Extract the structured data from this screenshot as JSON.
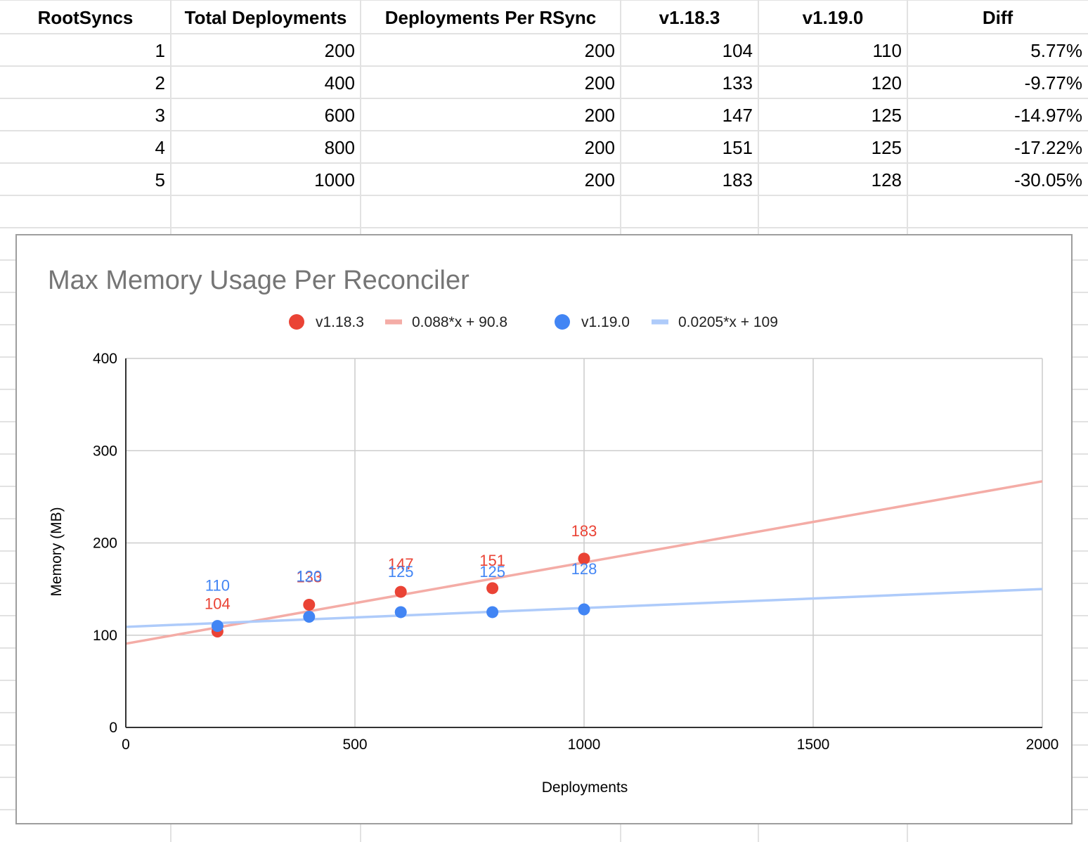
{
  "table": {
    "headers": [
      "RootSyncs",
      "Total Deployments",
      "Deployments Per RSync",
      "v1.18.3",
      "v1.19.0",
      "Diff"
    ],
    "rows": [
      [
        "1",
        "200",
        "200",
        "104",
        "110",
        "5.77%"
      ],
      [
        "2",
        "400",
        "200",
        "133",
        "120",
        "-9.77%"
      ],
      [
        "3",
        "600",
        "200",
        "147",
        "125",
        "-14.97%"
      ],
      [
        "4",
        "800",
        "200",
        "151",
        "125",
        "-17.22%"
      ],
      [
        "5",
        "1000",
        "200",
        "183",
        "128",
        "-30.05%"
      ]
    ]
  },
  "chart_data": {
    "type": "scatter",
    "title": "Max Memory Usage Per Reconciler",
    "xlabel": "Deployments",
    "ylabel": "Memory (MB)",
    "xlim": [
      0,
      2000
    ],
    "ylim": [
      0,
      400
    ],
    "x_ticks": [
      "0",
      "500",
      "1000",
      "1500",
      "2000"
    ],
    "y_ticks": [
      "0",
      "100",
      "200",
      "300",
      "400"
    ],
    "grid": true,
    "legend_position": "top",
    "series": [
      {
        "name": "v1.18.3",
        "color": "#ea4335",
        "x": [
          200,
          400,
          600,
          800,
          1000
        ],
        "y": [
          104,
          133,
          147,
          151,
          183
        ],
        "labels": [
          "104",
          "133",
          "147",
          "151",
          "183"
        ],
        "trendline": {
          "name": "0.088*x + 90.8",
          "slope": 0.088,
          "intercept": 90.8,
          "color": "#f4aca6"
        }
      },
      {
        "name": "v1.19.0",
        "color": "#4285f4",
        "x": [
          200,
          400,
          600,
          800,
          1000
        ],
        "y": [
          110,
          120,
          125,
          125,
          128
        ],
        "labels": [
          "110",
          "120",
          "125",
          "125",
          "128"
        ],
        "trendline": {
          "name": "0.0205*x + 109",
          "slope": 0.0205,
          "intercept": 109,
          "color": "#aecbfa"
        }
      }
    ]
  }
}
